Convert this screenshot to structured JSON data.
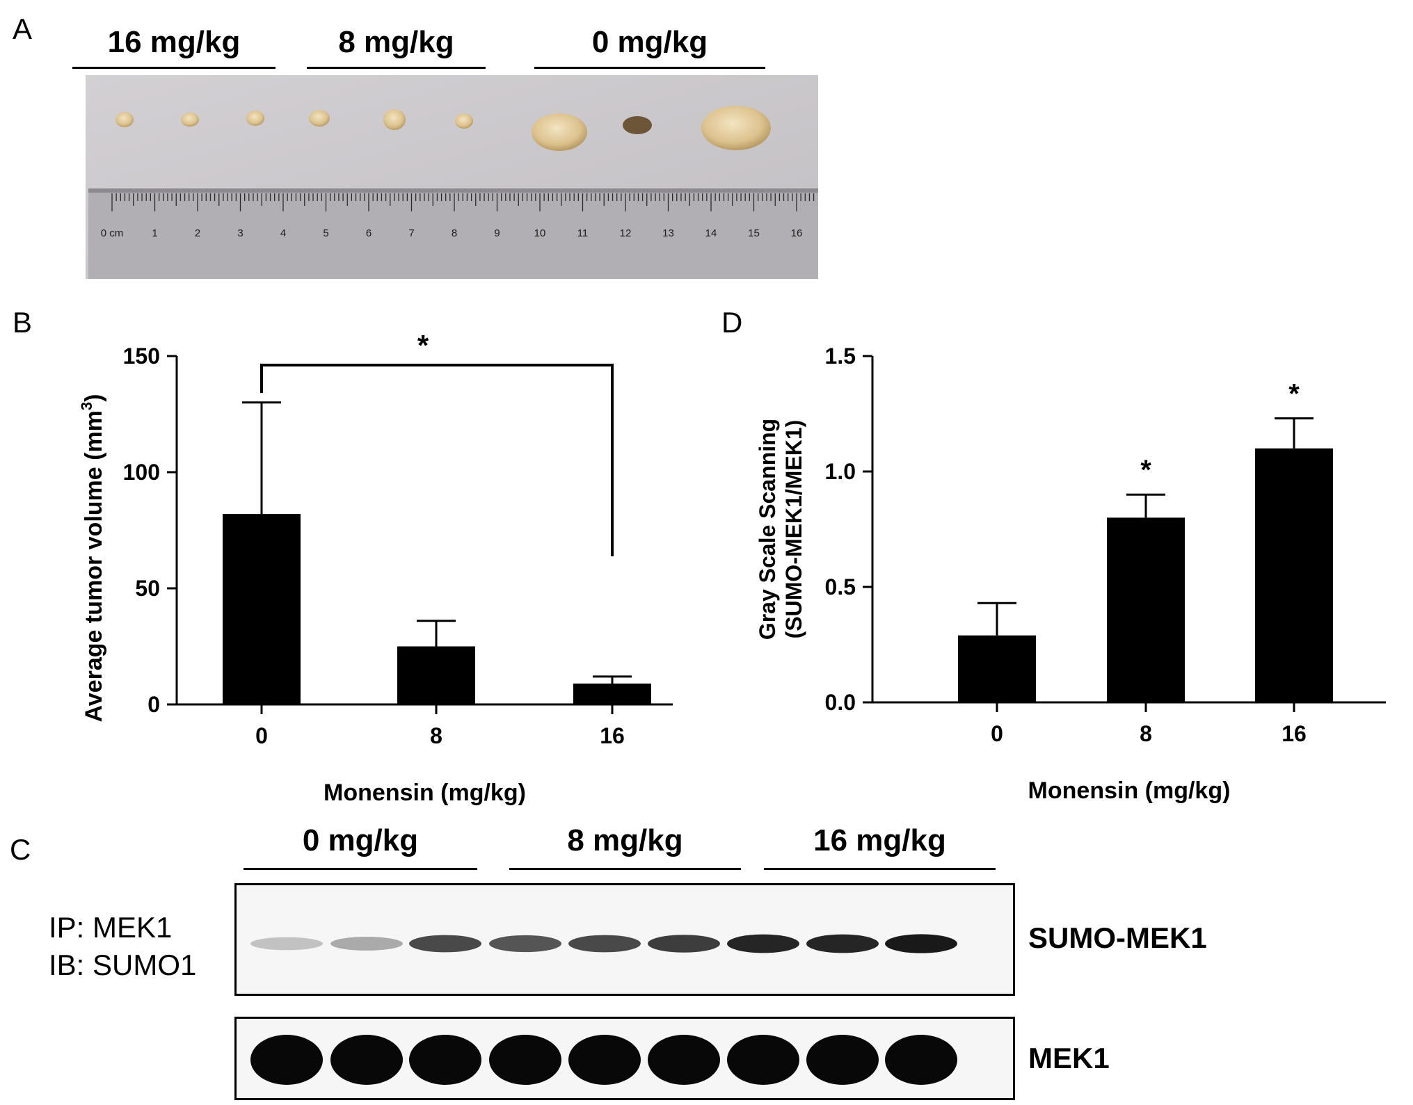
{
  "panels": {
    "A": "A",
    "B": "B",
    "C": "C",
    "D": "D"
  },
  "photo_panel": {
    "groups": [
      "16 mg/kg",
      "8 mg/kg",
      "0 mg/kg"
    ],
    "ruler_labels": [
      "0 cm",
      "1",
      "2",
      "3",
      "4",
      "5",
      "6",
      "7",
      "8",
      "9",
      "10",
      "11",
      "12",
      "13",
      "14",
      "15",
      "16"
    ],
    "colors": {
      "background": "#c9c6c9",
      "tumor": "#e3cfa4",
      "ruler": "#a9a9a9"
    }
  },
  "blot_panel": {
    "groups": [
      "0 mg/kg",
      "8 mg/kg",
      "16 mg/kg"
    ],
    "ip_label": "IP: MEK1",
    "ib_label": "IB: SUMO1",
    "upper_band_label": "SUMO-MEK1",
    "lower_band_label": "MEK1",
    "upper_intensity": [
      0.25,
      0.35,
      0.75,
      0.7,
      0.75,
      0.8,
      0.9,
      0.9,
      0.95
    ],
    "lower_intensity": [
      1,
      1,
      1,
      1,
      1,
      1,
      1,
      1,
      1
    ]
  },
  "chart_data": [
    {
      "id": "B",
      "type": "bar",
      "categories": [
        "0",
        "8",
        "16"
      ],
      "values": [
        82,
        25,
        9
      ],
      "error_upper": [
        130,
        36,
        12
      ],
      "xlabel": "Monensin (mg/kg)",
      "ylabel": "Average tumor volume (mm",
      "ylabel_sup": "3",
      "ylabel_end": ")",
      "ylim": [
        0,
        150
      ],
      "yticks": [
        "0",
        "50",
        "100",
        "150"
      ],
      "significance": {
        "from": "0",
        "to": "16",
        "label": "*"
      },
      "grid": false,
      "bar_color": "#000000"
    },
    {
      "id": "D",
      "type": "bar",
      "categories": [
        "0",
        "8",
        "16"
      ],
      "values": [
        0.29,
        0.8,
        1.1
      ],
      "error_upper": [
        0.43,
        0.9,
        1.23
      ],
      "xlabel": "Monensin (mg/kg)",
      "ylabel_line1": "Gray Scale Scanning",
      "ylabel_line2": "(SUMO-MEK1/MEK1)",
      "ylim": [
        0,
        1.5
      ],
      "yticks": [
        "0.0",
        "0.5",
        "1.0",
        "1.5"
      ],
      "bar_stars": [
        "",
        "*",
        "*"
      ],
      "grid": false,
      "bar_color": "#000000"
    }
  ]
}
